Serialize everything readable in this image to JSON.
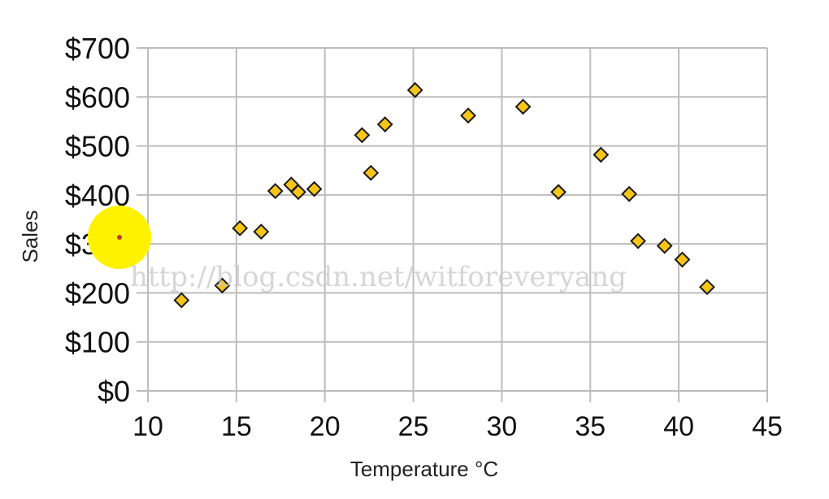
{
  "chart_data": {
    "type": "scatter",
    "title": "",
    "xlabel": "Temperature °C",
    "ylabel": "Sales",
    "xlim": [
      10,
      45
    ],
    "ylim": [
      0,
      700
    ],
    "x_ticks": [
      10,
      15,
      20,
      25,
      30,
      35,
      40,
      45
    ],
    "x_tick_labels": [
      "10",
      "15",
      "20",
      "25",
      "30",
      "35",
      "40",
      "45"
    ],
    "y_ticks": [
      0,
      100,
      200,
      300,
      400,
      500,
      600,
      700
    ],
    "y_tick_labels": [
      "$0",
      "$100",
      "$200",
      "$300",
      "$400",
      "$500",
      "$600",
      "$700"
    ],
    "grid": true,
    "legend": "none",
    "marker": "diamond",
    "marker_color": "#F5C518",
    "series": [
      {
        "points": [
          {
            "x": 11.9,
            "y": 185
          },
          {
            "x": 14.2,
            "y": 215
          },
          {
            "x": 15.2,
            "y": 332
          },
          {
            "x": 16.4,
            "y": 325
          },
          {
            "x": 17.2,
            "y": 408
          },
          {
            "x": 18.1,
            "y": 421
          },
          {
            "x": 18.5,
            "y": 406
          },
          {
            "x": 19.4,
            "y": 412
          },
          {
            "x": 22.1,
            "y": 522
          },
          {
            "x": 22.6,
            "y": 445
          },
          {
            "x": 23.4,
            "y": 544
          },
          {
            "x": 25.1,
            "y": 614
          },
          {
            "x": 28.1,
            "y": 562
          },
          {
            "x": 31.2,
            "y": 580
          },
          {
            "x": 33.2,
            "y": 406
          },
          {
            "x": 35.6,
            "y": 482
          },
          {
            "x": 37.2,
            "y": 402
          },
          {
            "x": 37.7,
            "y": 306
          },
          {
            "x": 39.2,
            "y": 296
          },
          {
            "x": 40.2,
            "y": 268
          },
          {
            "x": 41.6,
            "y": 212
          }
        ]
      }
    ]
  },
  "overlay": {
    "cursor_highlight_color": "#FFF200",
    "watermark_text": "http://blog.csdn.net/witforeveryang"
  }
}
